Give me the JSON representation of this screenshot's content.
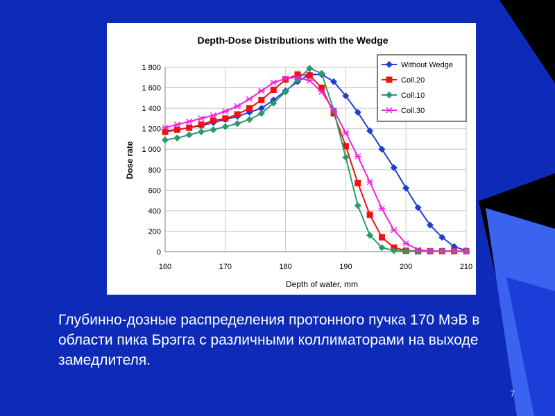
{
  "slide": {
    "caption": "Глубинно-дозные распределения протонного пучка 170 МэВ в области пика Брэгга с различными коллиматорами на выходе замедлителя.",
    "page_number": "7",
    "colors": {
      "background": "#0d2bb8",
      "dark_corner": "#000000",
      "accent_light": "#3a64f0",
      "accent_mid": "#1c3ed8"
    }
  },
  "chart_data": {
    "type": "line",
    "title": "Depth-Dose Distributions with the Wedge",
    "xlabel": "Depth of water, mm",
    "ylabel": "Dose rate",
    "xlim": [
      160,
      210
    ],
    "ylim": [
      0,
      1800
    ],
    "x_ticks": [
      160,
      170,
      180,
      190,
      200,
      210
    ],
    "y_ticks": [
      0,
      200,
      400,
      600,
      800,
      1000,
      1200,
      1400,
      1600,
      1800
    ],
    "y_tick_labels": [
      "0",
      "200",
      "400",
      "600",
      "800",
      "1 000",
      "1 200",
      "1 400",
      "1 600",
      "1 800"
    ],
    "grid": true,
    "legend_position": "top-right",
    "series": [
      {
        "name": "Without Wedge",
        "color": "#1f3fd0",
        "marker": "diamond",
        "x": [
          160,
          162,
          164,
          166,
          168,
          170,
          172,
          174,
          176,
          178,
          180,
          182,
          184,
          186,
          188,
          190,
          192,
          194,
          196,
          198,
          200,
          202,
          204,
          206,
          208,
          210
        ],
        "y": [
          1180,
          1190,
          1210,
          1230,
          1260,
          1290,
          1320,
          1360,
          1400,
          1480,
          1570,
          1660,
          1730,
          1730,
          1660,
          1520,
          1360,
          1180,
          1000,
          820,
          620,
          430,
          260,
          140,
          50,
          10
        ]
      },
      {
        "name": "Coll.20",
        "color": "#ee1111",
        "marker": "square",
        "x": [
          160,
          162,
          164,
          166,
          168,
          170,
          172,
          174,
          176,
          178,
          180,
          182,
          184,
          186,
          188,
          190,
          192,
          194,
          196,
          198,
          200,
          202,
          204,
          206,
          208,
          210
        ],
        "y": [
          1170,
          1190,
          1210,
          1240,
          1280,
          1300,
          1340,
          1400,
          1480,
          1580,
          1680,
          1730,
          1720,
          1600,
          1350,
          1030,
          670,
          360,
          140,
          40,
          10,
          5,
          5,
          5,
          5,
          5
        ]
      },
      {
        "name": "Coll.10",
        "color": "#2a9a6a",
        "marker": "diamond",
        "x": [
          160,
          162,
          164,
          166,
          168,
          170,
          172,
          174,
          176,
          178,
          180,
          182,
          184,
          186,
          188,
          190,
          192,
          194,
          196,
          198,
          200,
          202,
          204,
          206,
          208,
          210
        ],
        "y": [
          1090,
          1110,
          1140,
          1170,
          1190,
          1220,
          1250,
          1290,
          1350,
          1450,
          1560,
          1680,
          1790,
          1740,
          1380,
          920,
          450,
          160,
          40,
          10,
          5,
          5,
          5,
          5,
          5,
          5
        ]
      },
      {
        "name": "Coll.30",
        "color": "#ee22dd",
        "marker": "asterisk",
        "x": [
          160,
          162,
          164,
          166,
          168,
          170,
          172,
          174,
          176,
          178,
          180,
          182,
          184,
          186,
          188,
          190,
          192,
          194,
          196,
          198,
          200,
          202,
          204,
          206,
          208,
          210
        ],
        "y": [
          1210,
          1240,
          1270,
          1300,
          1330,
          1370,
          1420,
          1490,
          1570,
          1650,
          1690,
          1700,
          1670,
          1560,
          1380,
          1160,
          930,
          680,
          420,
          210,
          80,
          20,
          5,
          5,
          5,
          5
        ]
      }
    ]
  }
}
